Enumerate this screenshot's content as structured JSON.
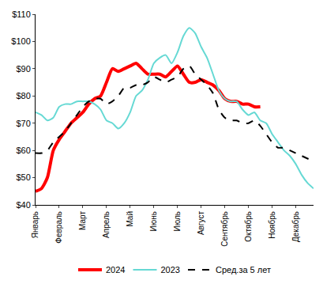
{
  "chart_data": {
    "type": "line",
    "categories": [
      "Январь",
      null,
      null,
      null,
      "Февраль",
      null,
      null,
      null,
      "Март",
      null,
      null,
      null,
      "Апрель",
      null,
      null,
      null,
      "Май",
      null,
      null,
      null,
      "Июнь",
      null,
      null,
      null,
      "Июль",
      null,
      null,
      null,
      "Август",
      null,
      null,
      null,
      "Сентябрь",
      null,
      null,
      null,
      "Октябрь",
      null,
      null,
      null,
      "Ноябрь",
      null,
      null,
      null,
      "Декабрь",
      null,
      null,
      null
    ],
    "series": [
      {
        "name": "2024",
        "color": "#ff0000",
        "line_style": "solid",
        "values": [
          45,
          46,
          50,
          60,
          64,
          67,
          70,
          72,
          74,
          77,
          79,
          80,
          85,
          90,
          89,
          90,
          91,
          92,
          90,
          88,
          88,
          88,
          87,
          89,
          91,
          88,
          85,
          85,
          86,
          85,
          84,
          82,
          79,
          78,
          78,
          77,
          77,
          76,
          76,
          null,
          null,
          null,
          null,
          null,
          null,
          null,
          null,
          null
        ]
      },
      {
        "name": "2023",
        "color": "#66d9d4",
        "line_style": "solid",
        "values": [
          74,
          73,
          71,
          72,
          76,
          77,
          77,
          78,
          78,
          78,
          77,
          75,
          71,
          70,
          68,
          70,
          74,
          80,
          82,
          86,
          92,
          94,
          95,
          92,
          96,
          102,
          105,
          103,
          98,
          94,
          88,
          82,
          79,
          78,
          78,
          75,
          73,
          74,
          71,
          70,
          66,
          63,
          60,
          58,
          55,
          51,
          48,
          46
        ]
      },
      {
        "name": "Сред.за 5 лет",
        "color": "#000000",
        "line_style": "dash",
        "values": [
          59,
          59,
          60,
          63,
          65,
          67,
          70,
          73,
          76,
          78,
          79,
          79,
          77,
          78,
          80,
          83,
          83,
          84,
          84,
          85,
          87,
          86,
          85,
          86,
          87,
          90,
          91,
          88,
          86,
          84,
          81,
          75,
          72,
          71,
          71,
          70,
          70,
          71,
          69,
          66,
          63,
          61,
          61,
          60,
          59,
          58,
          57,
          56
        ]
      }
    ],
    "ylim": [
      40,
      110
    ],
    "yticks": [
      {
        "value": 40,
        "label": "$40"
      },
      {
        "value": 50,
        "label": "$50"
      },
      {
        "value": 60,
        "label": "$60"
      },
      {
        "value": 70,
        "label": "$70"
      },
      {
        "value": 80,
        "label": "$80"
      },
      {
        "value": 90,
        "label": "$90"
      },
      {
        "value": 100,
        "label": "$100"
      },
      {
        "value": 110,
        "label": "$110"
      }
    ],
    "grid": false,
    "legend": "bottom"
  }
}
